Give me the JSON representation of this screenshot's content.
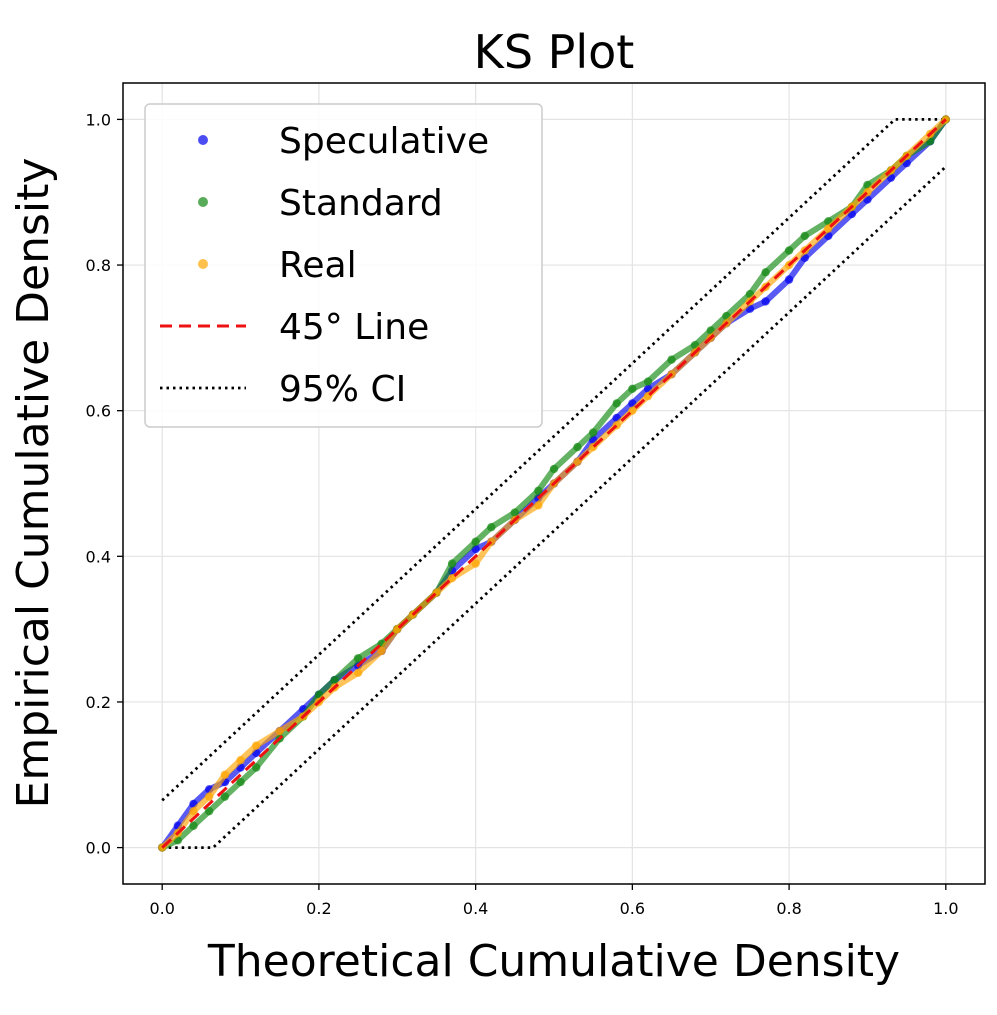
{
  "chart_data": {
    "type": "scatter",
    "title": "KS Plot",
    "xlabel": "Theoretical Cumulative Density",
    "ylabel": "Empirical Cumulative Density",
    "xlim": [
      -0.05,
      1.05
    ],
    "ylim": [
      -0.05,
      1.05
    ],
    "xticks": [
      0.0,
      0.2,
      0.4,
      0.6,
      0.8,
      1.0
    ],
    "yticks": [
      0.0,
      0.2,
      0.4,
      0.6,
      0.8,
      1.0
    ],
    "tick_labels_x": [
      "0.0",
      "0.2",
      "0.4",
      "0.6",
      "0.8",
      "1.0"
    ],
    "tick_labels_y": [
      "0.0",
      "0.2",
      "0.4",
      "0.6",
      "0.8",
      "1.0"
    ],
    "grid": true,
    "legend_position": "upper-left",
    "series": [
      {
        "name": "Speculative",
        "kind": "scatter",
        "color": "#0000ee",
        "x": [
          0.0,
          0.02,
          0.04,
          0.06,
          0.08,
          0.1,
          0.12,
          0.15,
          0.18,
          0.2,
          0.22,
          0.25,
          0.28,
          0.3,
          0.32,
          0.35,
          0.37,
          0.4,
          0.42,
          0.45,
          0.48,
          0.5,
          0.53,
          0.55,
          0.58,
          0.6,
          0.62,
          0.65,
          0.68,
          0.7,
          0.72,
          0.75,
          0.77,
          0.8,
          0.82,
          0.85,
          0.88,
          0.9,
          0.93,
          0.95,
          0.98,
          1.0
        ],
        "y": [
          0.0,
          0.03,
          0.06,
          0.08,
          0.09,
          0.11,
          0.13,
          0.16,
          0.19,
          0.21,
          0.23,
          0.25,
          0.27,
          0.3,
          0.32,
          0.35,
          0.38,
          0.41,
          0.42,
          0.45,
          0.48,
          0.5,
          0.53,
          0.56,
          0.59,
          0.61,
          0.63,
          0.65,
          0.68,
          0.7,
          0.72,
          0.74,
          0.75,
          0.78,
          0.81,
          0.84,
          0.87,
          0.89,
          0.92,
          0.94,
          0.97,
          1.0
        ]
      },
      {
        "name": "Standard",
        "kind": "scatter",
        "color": "#118811",
        "x": [
          0.0,
          0.02,
          0.04,
          0.06,
          0.08,
          0.1,
          0.12,
          0.15,
          0.18,
          0.2,
          0.22,
          0.25,
          0.28,
          0.3,
          0.32,
          0.35,
          0.37,
          0.4,
          0.42,
          0.45,
          0.48,
          0.5,
          0.53,
          0.55,
          0.58,
          0.6,
          0.62,
          0.65,
          0.68,
          0.7,
          0.72,
          0.75,
          0.77,
          0.8,
          0.82,
          0.85,
          0.88,
          0.9,
          0.93,
          0.95,
          0.98,
          1.0
        ],
        "y": [
          0.0,
          0.01,
          0.03,
          0.05,
          0.07,
          0.09,
          0.11,
          0.15,
          0.18,
          0.21,
          0.23,
          0.26,
          0.28,
          0.3,
          0.32,
          0.35,
          0.39,
          0.42,
          0.44,
          0.46,
          0.49,
          0.52,
          0.55,
          0.57,
          0.61,
          0.63,
          0.64,
          0.67,
          0.69,
          0.71,
          0.73,
          0.76,
          0.79,
          0.82,
          0.84,
          0.86,
          0.88,
          0.91,
          0.93,
          0.95,
          0.97,
          1.0
        ]
      },
      {
        "name": "Real",
        "kind": "scatter",
        "color": "#ffa500",
        "x": [
          0.0,
          0.02,
          0.04,
          0.06,
          0.08,
          0.1,
          0.12,
          0.15,
          0.18,
          0.2,
          0.22,
          0.25,
          0.28,
          0.3,
          0.32,
          0.35,
          0.37,
          0.4,
          0.42,
          0.45,
          0.48,
          0.5,
          0.53,
          0.55,
          0.58,
          0.6,
          0.62,
          0.65,
          0.68,
          0.7,
          0.72,
          0.75,
          0.77,
          0.8,
          0.82,
          0.85,
          0.88,
          0.9,
          0.93,
          0.95,
          0.98,
          1.0
        ],
        "y": [
          0.0,
          0.02,
          0.05,
          0.07,
          0.1,
          0.12,
          0.14,
          0.16,
          0.18,
          0.2,
          0.22,
          0.24,
          0.27,
          0.3,
          0.32,
          0.35,
          0.37,
          0.39,
          0.42,
          0.45,
          0.47,
          0.5,
          0.53,
          0.55,
          0.58,
          0.6,
          0.62,
          0.65,
          0.68,
          0.7,
          0.72,
          0.75,
          0.77,
          0.8,
          0.82,
          0.85,
          0.88,
          0.9,
          0.93,
          0.95,
          0.98,
          1.0
        ]
      },
      {
        "name": "45° Line",
        "kind": "line",
        "style": "dashed",
        "color": "#ee1111",
        "x": [
          0.0,
          1.0
        ],
        "y": [
          0.0,
          1.0
        ]
      },
      {
        "name": "95% CI",
        "kind": "line",
        "style": "dotted",
        "color": "#000000",
        "upper": {
          "x": [
            0.0,
            0.935,
            1.0
          ],
          "y": [
            0.065,
            1.0,
            1.0
          ]
        },
        "lower": {
          "x": [
            0.0,
            0.065,
            1.0
          ],
          "y": [
            0.0,
            0.0,
            0.935
          ]
        }
      }
    ]
  }
}
